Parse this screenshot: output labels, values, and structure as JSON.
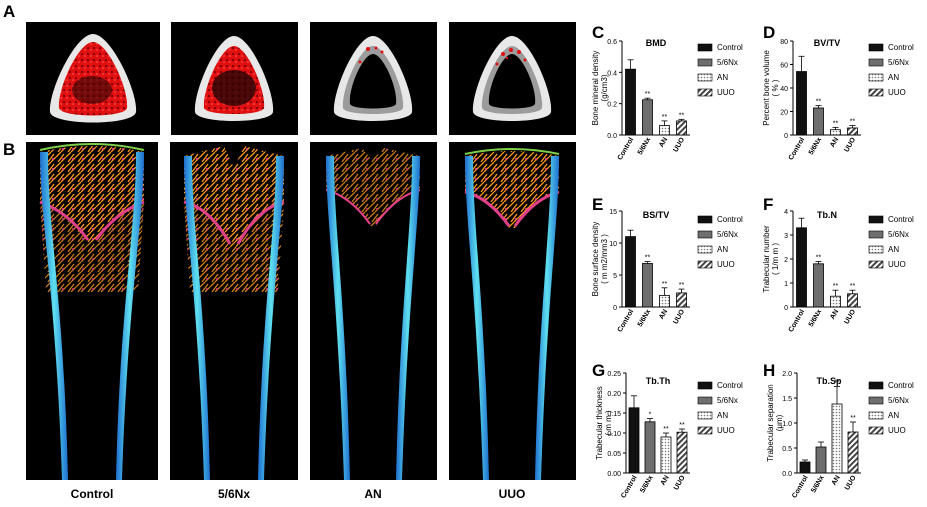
{
  "panel_letters": {
    "A": "A",
    "B": "B",
    "C": "C",
    "D": "D",
    "E": "E",
    "F": "F",
    "G": "G",
    "H": "H"
  },
  "groups": [
    "Control",
    "5/6Nx",
    "AN",
    "UUO"
  ],
  "colors": {
    "control": "#111111",
    "nx": "#6e6e6e",
    "an": "#d0d0d0",
    "uuo": "#9a9a9a",
    "bone_red": "#e01010",
    "bone_shell": "#e8e8e8",
    "bone_gray": "#9c9c9c"
  },
  "chart_data": [
    {
      "id": "C",
      "type": "bar",
      "title": "BMD",
      "ylabel": "Bone mineral density",
      "ylabel2": "(g/cm^3)",
      "categories": [
        "Control",
        "5/6Nx",
        "AN",
        "UUO"
      ],
      "values": [
        0.42,
        0.225,
        0.06,
        0.09
      ],
      "errors": [
        0.06,
        0.01,
        0.03,
        0.01
      ],
      "sig": [
        "",
        "**",
        "**",
        "**"
      ],
      "ylim": [
        0,
        0.6
      ],
      "yticks": [
        0.0,
        0.2,
        0.4,
        0.6
      ],
      "ytick_labels": [
        "0.0",
        "0.2",
        "0.4",
        "0.6"
      ],
      "legend": [
        "Control",
        "5/6Nx",
        "AN",
        "UUO"
      ]
    },
    {
      "id": "D",
      "type": "bar",
      "title": "BV/TV",
      "ylabel": "Percent bone volume",
      "ylabel2": "( % )",
      "categories": [
        "Control",
        "5/6Nx",
        "AN",
        "UUO"
      ],
      "values": [
        54,
        23,
        4.5,
        6
      ],
      "errors": [
        13,
        2,
        2,
        2
      ],
      "sig": [
        "",
        "**",
        "**",
        "**"
      ],
      "ylim": [
        0,
        80
      ],
      "yticks": [
        0,
        20,
        40,
        60,
        80
      ],
      "ytick_labels": [
        "0",
        "20",
        "40",
        "60",
        "80"
      ],
      "legend": [
        "Control",
        "5/6Nx",
        "AN",
        "UUO"
      ]
    },
    {
      "id": "E",
      "type": "bar",
      "title": "BS/TV",
      "ylabel": "Bone surface density",
      "ylabel2": "( m m^2/mm^3 )",
      "categories": [
        "Control",
        "5/6Nx",
        "AN",
        "UUO"
      ],
      "values": [
        11,
        6.8,
        1.8,
        2.2
      ],
      "errors": [
        1,
        0.3,
        1.2,
        0.6
      ],
      "sig": [
        "",
        "**",
        "**",
        "**"
      ],
      "ylim": [
        0,
        15
      ],
      "yticks": [
        0,
        5,
        10,
        15
      ],
      "ytick_labels": [
        "0",
        "5",
        "10",
        "15"
      ],
      "legend": [
        "Control",
        "5/6Nx",
        "AN",
        "UUO"
      ]
    },
    {
      "id": "F",
      "type": "bar",
      "title": "Tb.N",
      "ylabel": "Trabecular number",
      "ylabel2": "( 1/m m )",
      "categories": [
        "Control",
        "5/6Nx",
        "AN",
        "UUO"
      ],
      "values": [
        3.3,
        1.8,
        0.45,
        0.55
      ],
      "errors": [
        0.4,
        0.1,
        0.25,
        0.15
      ],
      "sig": [
        "",
        "**",
        "**",
        "**"
      ],
      "ylim": [
        0,
        4
      ],
      "yticks": [
        0,
        1,
        2,
        3,
        4
      ],
      "ytick_labels": [
        "0",
        "1",
        "2",
        "3",
        "4"
      ],
      "legend": [
        "Control",
        "5/6Nx",
        "AN",
        "UUO"
      ]
    },
    {
      "id": "G",
      "type": "bar",
      "title": "Tb.Th",
      "ylabel": "Trabecular thickness",
      "ylabel2": "( m m )",
      "categories": [
        "Control",
        "5/6Nx",
        "AN",
        "UUO"
      ],
      "values": [
        0.163,
        0.128,
        0.09,
        0.102
      ],
      "errors": [
        0.03,
        0.008,
        0.01,
        0.008
      ],
      "sig": [
        "",
        "*",
        "**",
        "**"
      ],
      "ylim": [
        0,
        0.25
      ],
      "yticks": [
        0,
        0.05,
        0.1,
        0.15,
        0.2,
        0.25
      ],
      "ytick_labels": [
        "0.00",
        "0.05",
        "0.10",
        "0.15",
        "0.20",
        "0.25"
      ],
      "legend": [
        "Control",
        "5/6Nx",
        "AN",
        "UUO"
      ]
    },
    {
      "id": "H",
      "type": "bar",
      "title": "Tb.Sp",
      "ylabel": "Trabecular separation",
      "ylabel2": "(μm)",
      "categories": [
        "Control",
        "5/6Nx",
        "AN",
        "UUO"
      ],
      "values": [
        0.22,
        0.52,
        1.38,
        0.82
      ],
      "errors": [
        0.04,
        0.1,
        0.35,
        0.2
      ],
      "sig": [
        "",
        "",
        "**",
        "**"
      ],
      "ylim": [
        0,
        2.0
      ],
      "yticks": [
        0,
        0.5,
        1.0,
        1.5,
        2.0
      ],
      "ytick_labels": [
        "0.0",
        "0.5",
        "1.0",
        "1.5",
        "2.0"
      ],
      "legend": [
        "Control",
        "5/6Nx",
        "AN",
        "UUO"
      ]
    }
  ]
}
